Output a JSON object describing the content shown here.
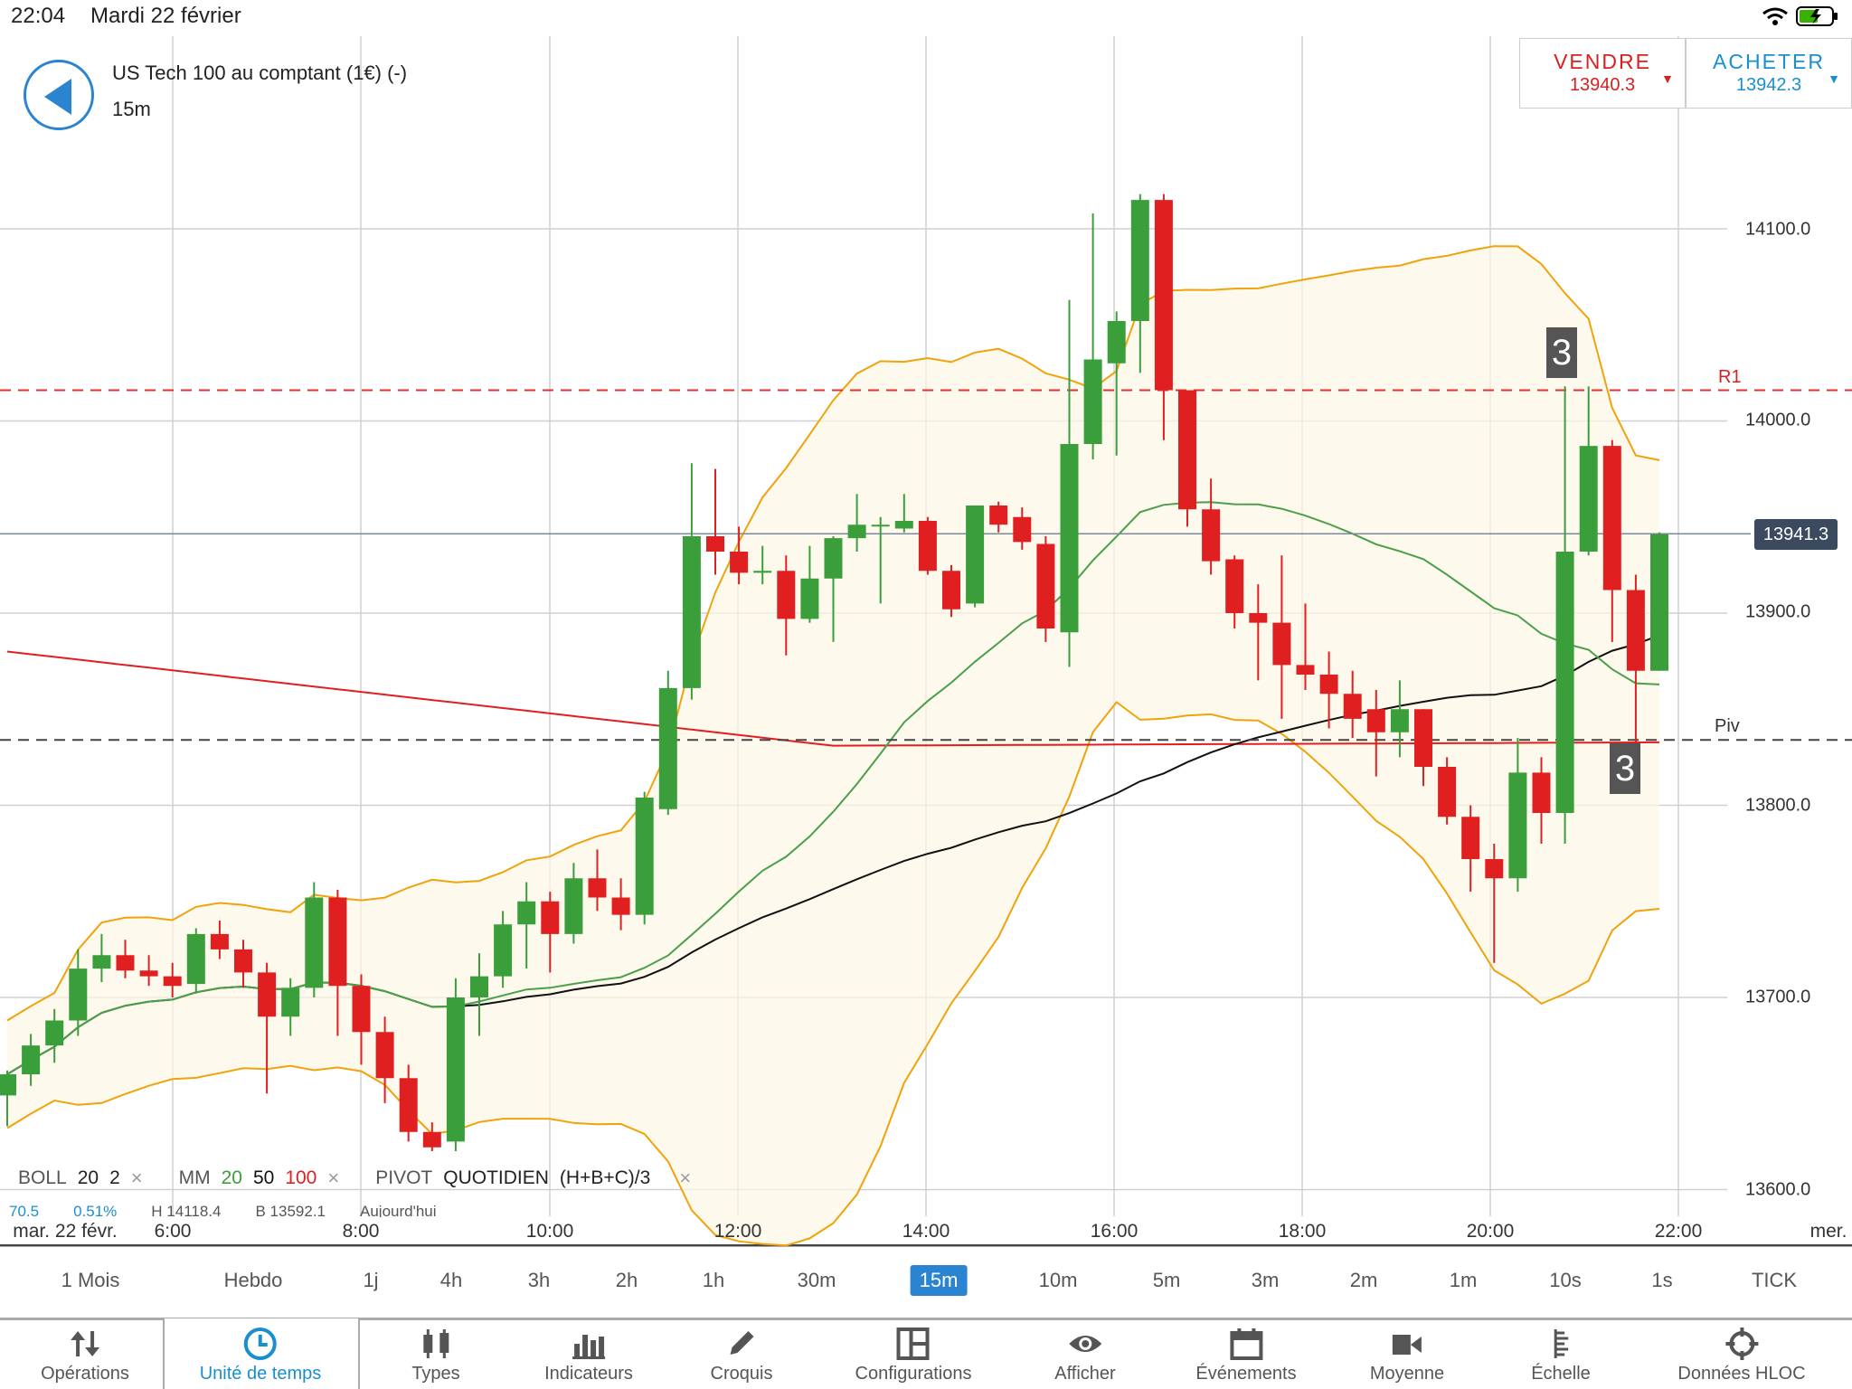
{
  "status": {
    "time": "22:04",
    "date": "Mardi 22 février"
  },
  "instrument": {
    "title": "US Tech 100 au comptant (1€) (-)",
    "timeframe": "15m"
  },
  "trade": {
    "sell_label": "VENDRE",
    "sell_price": "13940.3",
    "buy_label": "ACHETER",
    "buy_price": "13942.3"
  },
  "legend": {
    "boll": "BOLL",
    "boll_p1": "20",
    "boll_p2": "2",
    "mm": "MM",
    "mm_p1": "20",
    "mm_p2": "50",
    "mm_p3": "100",
    "pivot": "PIVOT",
    "pivot_type": "QUOTIDIEN",
    "pivot_formula": "(H+B+C)/3",
    "close": "×"
  },
  "stats": {
    "s1": "70.5",
    "s2": "0.51%",
    "s3": "H 14118.4",
    "s4": "B 13592.1",
    "s5": "Aujourd'hui"
  },
  "chart_data": {
    "type": "candlestick",
    "interval": "15m",
    "y_ticks": [
      "14100.0",
      "14000.0",
      "13900.0",
      "13800.0",
      "13700.0",
      "13600.0"
    ],
    "y_range": [
      13590,
      14240
    ],
    "x_ticks": [
      "mar. 22 févr.",
      "6:00",
      "8:00",
      "10:00",
      "12:00",
      "14:00",
      "16:00",
      "18:00",
      "20:00",
      "22:00",
      "mer."
    ],
    "current_price": "13941.3",
    "levels": [
      {
        "name": "R1",
        "value": 14016
      },
      {
        "name": "Piv",
        "value": 13834
      }
    ],
    "annotations": [
      "3",
      "3"
    ],
    "colors": {
      "up": "#3a9f3a",
      "down": "#e02020",
      "bollinger": "#f0a30a",
      "ma20": "#4aa04a",
      "ma50": "#111111",
      "ma100": "#e02020"
    },
    "candles": [
      {
        "t": "5:00",
        "o": 13649,
        "h": 13662,
        "l": 13633,
        "c": 13660
      },
      {
        "t": "5:15",
        "o": 13660,
        "h": 13681,
        "l": 13654,
        "c": 13675
      },
      {
        "t": "5:30",
        "o": 13675,
        "h": 13694,
        "l": 13666,
        "c": 13688
      },
      {
        "t": "5:45",
        "o": 13688,
        "h": 13725,
        "l": 13680,
        "c": 13715
      },
      {
        "t": "6:00",
        "o": 13715,
        "h": 13733,
        "l": 13708,
        "c": 13722
      },
      {
        "t": "6:15",
        "o": 13722,
        "h": 13730,
        "l": 13710,
        "c": 13714
      },
      {
        "t": "6:30",
        "o": 13714,
        "h": 13722,
        "l": 13706,
        "c": 13711
      },
      {
        "t": "6:45",
        "o": 13711,
        "h": 13718,
        "l": 13700,
        "c": 13706
      },
      {
        "t": "7:00",
        "o": 13707,
        "h": 13736,
        "l": 13702,
        "c": 13733
      },
      {
        "t": "7:15",
        "o": 13733,
        "h": 13740,
        "l": 13720,
        "c": 13725
      },
      {
        "t": "7:30",
        "o": 13725,
        "h": 13730,
        "l": 13705,
        "c": 13713
      },
      {
        "t": "7:45",
        "o": 13713,
        "h": 13718,
        "l": 13650,
        "c": 13690
      },
      {
        "t": "8:00",
        "o": 13690,
        "h": 13710,
        "l": 13680,
        "c": 13705
      },
      {
        "t": "8:15",
        "o": 13705,
        "h": 13760,
        "l": 13700,
        "c": 13752
      },
      {
        "t": "8:30",
        "o": 13752,
        "h": 13756,
        "l": 13680,
        "c": 13706
      },
      {
        "t": "8:45",
        "o": 13706,
        "h": 13712,
        "l": 13665,
        "c": 13682
      },
      {
        "t": "9:00",
        "o": 13682,
        "h": 13690,
        "l": 13645,
        "c": 13658
      },
      {
        "t": "9:15",
        "o": 13658,
        "h": 13665,
        "l": 13625,
        "c": 13630
      },
      {
        "t": "9:30",
        "o": 13630,
        "h": 13635,
        "l": 13620,
        "c": 13622
      },
      {
        "t": "9:45",
        "o": 13625,
        "h": 13710,
        "l": 13620,
        "c": 13700
      },
      {
        "t": "10:00",
        "o": 13700,
        "h": 13723,
        "l": 13680,
        "c": 13711
      },
      {
        "t": "10:15",
        "o": 13711,
        "h": 13745,
        "l": 13705,
        "c": 13738
      },
      {
        "t": "10:30",
        "o": 13738,
        "h": 13760,
        "l": 13715,
        "c": 13750
      },
      {
        "t": "10:45",
        "o": 13750,
        "h": 13755,
        "l": 13713,
        "c": 13733
      },
      {
        "t": "11:00",
        "o": 13733,
        "h": 13770,
        "l": 13728,
        "c": 13762
      },
      {
        "t": "11:15",
        "o": 13762,
        "h": 13777,
        "l": 13745,
        "c": 13752
      },
      {
        "t": "11:30",
        "o": 13752,
        "h": 13762,
        "l": 13735,
        "c": 13743
      },
      {
        "t": "11:45",
        "o": 13743,
        "h": 13807,
        "l": 13738,
        "c": 13804
      },
      {
        "t": "12:00",
        "o": 13798,
        "h": 13870,
        "l": 13795,
        "c": 13861
      },
      {
        "t": "12:15",
        "o": 13861,
        "h": 13978,
        "l": 13855,
        "c": 13940
      },
      {
        "t": "12:30",
        "o": 13940,
        "h": 13975,
        "l": 13920,
        "c": 13932
      },
      {
        "t": "12:45",
        "o": 13932,
        "h": 13945,
        "l": 13915,
        "c": 13921
      },
      {
        "t": "13:00",
        "o": 13921,
        "h": 13935,
        "l": 13915,
        "c": 13922
      },
      {
        "t": "13:15",
        "o": 13922,
        "h": 13930,
        "l": 13878,
        "c": 13897
      },
      {
        "t": "13:30",
        "o": 13897,
        "h": 13935,
        "l": 13895,
        "c": 13918
      },
      {
        "t": "13:45",
        "o": 13918,
        "h": 13940,
        "l": 13885,
        "c": 13939
      },
      {
        "t": "14:00",
        "o": 13939,
        "h": 13962,
        "l": 13932,
        "c": 13946
      },
      {
        "t": "14:15",
        "o": 13946,
        "h": 13950,
        "l": 13905,
        "c": 13946
      },
      {
        "t": "14:30",
        "o": 13944,
        "h": 13962,
        "l": 13942,
        "c": 13948
      },
      {
        "t": "14:45",
        "o": 13948,
        "h": 13950,
        "l": 13920,
        "c": 13922
      },
      {
        "t": "15:00",
        "o": 13922,
        "h": 13925,
        "l": 13898,
        "c": 13902
      },
      {
        "t": "15:15",
        "o": 13905,
        "h": 13956,
        "l": 13903,
        "c": 13956
      },
      {
        "t": "15:30",
        "o": 13956,
        "h": 13958,
        "l": 13942,
        "c": 13946
      },
      {
        "t": "15:45",
        "o": 13950,
        "h": 13955,
        "l": 13933,
        "c": 13937
      },
      {
        "t": "16:00",
        "o": 13936,
        "h": 13940,
        "l": 13885,
        "c": 13892
      },
      {
        "t": "16:15",
        "o": 13890,
        "h": 14063,
        "l": 13872,
        "c": 13988
      },
      {
        "t": "16:30",
        "o": 13988,
        "h": 14108,
        "l": 13980,
        "c": 14032
      },
      {
        "t": "16:45",
        "o": 14030,
        "h": 14057,
        "l": 13982,
        "c": 14052
      },
      {
        "t": "17:00",
        "o": 14052,
        "h": 14118,
        "l": 14025,
        "c": 14115
      },
      {
        "t": "17:15",
        "o": 14115,
        "h": 14118,
        "l": 13990,
        "c": 14016
      },
      {
        "t": "17:30",
        "o": 14016,
        "h": 14016,
        "l": 13945,
        "c": 13954
      },
      {
        "t": "17:45",
        "o": 13954,
        "h": 13970,
        "l": 13920,
        "c": 13927
      },
      {
        "t": "18:00",
        "o": 13928,
        "h": 13930,
        "l": 13892,
        "c": 13900
      },
      {
        "t": "18:15",
        "o": 13900,
        "h": 13915,
        "l": 13865,
        "c": 13895
      },
      {
        "t": "18:30",
        "o": 13895,
        "h": 13930,
        "l": 13845,
        "c": 13873
      },
      {
        "t": "18:45",
        "o": 13873,
        "h": 13905,
        "l": 13860,
        "c": 13868
      },
      {
        "t": "19:00",
        "o": 13868,
        "h": 13880,
        "l": 13840,
        "c": 13858
      },
      {
        "t": "19:15",
        "o": 13858,
        "h": 13870,
        "l": 13835,
        "c": 13845
      },
      {
        "t": "19:30",
        "o": 13850,
        "h": 13860,
        "l": 13815,
        "c": 13838
      },
      {
        "t": "19:45",
        "o": 13838,
        "h": 13865,
        "l": 13825,
        "c": 13850
      },
      {
        "t": "20:00",
        "o": 13850,
        "h": 13850,
        "l": 13810,
        "c": 13820
      },
      {
        "t": "20:15",
        "o": 13820,
        "h": 13825,
        "l": 13790,
        "c": 13794
      },
      {
        "t": "20:30",
        "o": 13794,
        "h": 13800,
        "l": 13755,
        "c": 13772
      },
      {
        "t": "20:45",
        "o": 13772,
        "h": 13780,
        "l": 13718,
        "c": 13762
      },
      {
        "t": "21:00",
        "o": 13762,
        "h": 13835,
        "l": 13755,
        "c": 13817
      },
      {
        "t": "21:15",
        "o": 13817,
        "h": 13825,
        "l": 13780,
        "c": 13796
      },
      {
        "t": "21:30",
        "o": 13796,
        "h": 14018,
        "l": 13780,
        "c": 13932
      },
      {
        "t": "21:45",
        "o": 13932,
        "h": 14018,
        "l": 13930,
        "c": 13987
      },
      {
        "t": "22:00",
        "o": 13987,
        "h": 13990,
        "l": 13885,
        "c": 13912
      },
      {
        "t": "22:15",
        "o": 13912,
        "h": 13920,
        "l": 13818,
        "c": 13870
      },
      {
        "t": "22:30",
        "o": 13870,
        "h": 13942,
        "l": 13870,
        "c": 13941
      }
    ]
  },
  "timeframes": [
    {
      "label": "1 Mois"
    },
    {
      "label": "Hebdo"
    },
    {
      "label": "1j"
    },
    {
      "label": "4h"
    },
    {
      "label": "3h"
    },
    {
      "label": "2h"
    },
    {
      "label": "1h"
    },
    {
      "label": "30m"
    },
    {
      "label": "15m"
    },
    {
      "label": "10m"
    },
    {
      "label": "5m"
    },
    {
      "label": "3m"
    },
    {
      "label": "2m"
    },
    {
      "label": "1m"
    },
    {
      "label": "10s"
    },
    {
      "label": "1s"
    },
    {
      "label": "TICK"
    }
  ],
  "active_timeframe": "15m",
  "toolbar": [
    {
      "label": "Opérations",
      "icon": "updown-arrows-icon"
    },
    {
      "label": "Unité de temps",
      "icon": "clock-icon"
    },
    {
      "label": "Types",
      "icon": "candles-icon"
    },
    {
      "label": "Indicateurs",
      "icon": "bar-chart-icon"
    },
    {
      "label": "Croquis",
      "icon": "pencil-icon"
    },
    {
      "label": "Configurations",
      "icon": "layout-icon"
    },
    {
      "label": "Afficher",
      "icon": "eye-icon"
    },
    {
      "label": "Événements",
      "icon": "calendar-icon"
    },
    {
      "label": "Moyenne",
      "icon": "camera-icon"
    },
    {
      "label": "Échelle",
      "icon": "scale-icon"
    },
    {
      "label": "Données HLOC",
      "icon": "crosshair-icon"
    }
  ]
}
